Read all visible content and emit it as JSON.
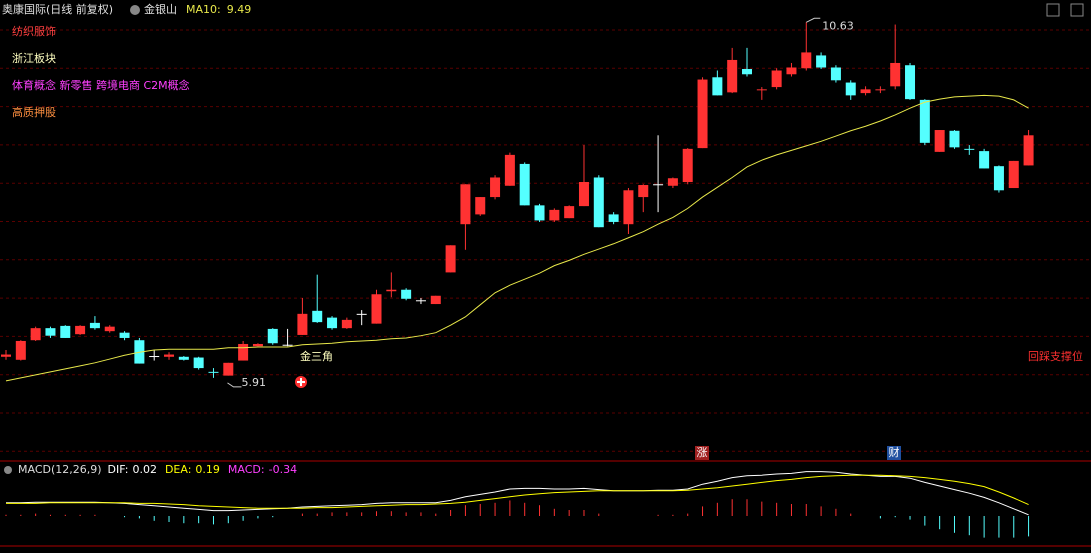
{
  "header": {
    "title": "奥康国际(日线 前复权)",
    "subtitle": "金银山"
  },
  "chart_data": [
    {
      "type": "candlestick",
      "ylim": [
        4.82,
        10.74
      ],
      "up_color": "#ff3232",
      "down_color": "#54ffff",
      "flat_color": "#ffffff",
      "candles": [
        {
          "open": 6.19,
          "high": 6.28,
          "low": 6.15,
          "close": 6.22
        },
        {
          "open": 6.15,
          "high": 6.41,
          "low": 6.14,
          "close": 6.4
        },
        {
          "open": 6.41,
          "high": 6.59,
          "low": 6.4,
          "close": 6.57
        },
        {
          "open": 6.57,
          "high": 6.59,
          "low": 6.44,
          "close": 6.47
        },
        {
          "open": 6.6,
          "high": 6.61,
          "low": 6.44,
          "close": 6.44
        },
        {
          "open": 6.49,
          "high": 6.61,
          "low": 6.48,
          "close": 6.6
        },
        {
          "open": 6.64,
          "high": 6.73,
          "low": 6.55,
          "close": 6.57
        },
        {
          "open": 6.53,
          "high": 6.61,
          "low": 6.51,
          "close": 6.59
        },
        {
          "open": 6.51,
          "high": 6.53,
          "low": 6.41,
          "close": 6.44
        },
        {
          "open": 6.41,
          "high": 6.44,
          "low": 6.1,
          "close": 6.1
        },
        {
          "open": 6.2,
          "high": 6.28,
          "low": 6.14,
          "close": 6.2
        },
        {
          "open": 6.19,
          "high": 6.25,
          "low": 6.15,
          "close": 6.22
        },
        {
          "open": 6.19,
          "high": 6.2,
          "low": 6.14,
          "close": 6.15
        },
        {
          "open": 6.18,
          "high": 6.19,
          "low": 6.02,
          "close": 6.04
        },
        {
          "open": 5.99,
          "high": 6.04,
          "low": 5.91,
          "close": 5.98
        },
        {
          "open": 5.94,
          "high": 6.11,
          "low": 5.94,
          "close": 6.11
        },
        {
          "open": 6.14,
          "high": 6.4,
          "low": 6.14,
          "close": 6.36
        },
        {
          "open": 6.33,
          "high": 6.37,
          "low": 6.33,
          "close": 6.36
        },
        {
          "open": 6.56,
          "high": 6.57,
          "low": 6.35,
          "close": 6.37
        },
        {
          "open": 6.35,
          "high": 6.56,
          "low": 6.33,
          "close": 6.35
        },
        {
          "open": 6.48,
          "high": 6.97,
          "low": 6.48,
          "close": 6.76
        },
        {
          "open": 6.8,
          "high": 7.28,
          "low": 6.64,
          "close": 6.65
        },
        {
          "open": 6.71,
          "high": 6.73,
          "low": 6.55,
          "close": 6.57
        },
        {
          "open": 6.57,
          "high": 6.71,
          "low": 6.56,
          "close": 6.68
        },
        {
          "open": 6.76,
          "high": 6.81,
          "low": 6.61,
          "close": 6.76
        },
        {
          "open": 6.63,
          "high": 7.08,
          "low": 6.63,
          "close": 7.02
        },
        {
          "open": 7.06,
          "high": 7.31,
          "low": 6.98,
          "close": 7.08
        },
        {
          "open": 7.08,
          "high": 7.1,
          "low": 6.94,
          "close": 6.96
        },
        {
          "open": 6.94,
          "high": 6.97,
          "low": 6.89,
          "close": 6.94
        },
        {
          "open": 6.89,
          "high": 7.0,
          "low": 6.89,
          "close": 7.0
        },
        {
          "open": 7.31,
          "high": 7.67,
          "low": 7.31,
          "close": 7.67
        },
        {
          "open": 7.95,
          "high": 8.48,
          "low": 7.61,
          "close": 8.48
        },
        {
          "open": 8.08,
          "high": 8.31,
          "low": 8.06,
          "close": 8.31
        },
        {
          "open": 8.31,
          "high": 8.6,
          "low": 8.28,
          "close": 8.57
        },
        {
          "open": 8.46,
          "high": 8.9,
          "low": 8.46,
          "close": 8.87
        },
        {
          "open": 8.75,
          "high": 8.77,
          "low": 8.2,
          "close": 8.2
        },
        {
          "open": 8.2,
          "high": 8.22,
          "low": 7.98,
          "close": 8.0
        },
        {
          "open": 8.0,
          "high": 8.16,
          "low": 7.98,
          "close": 8.14
        },
        {
          "open": 8.03,
          "high": 8.2,
          "low": 8.03,
          "close": 8.19
        },
        {
          "open": 8.19,
          "high": 9.0,
          "low": 8.19,
          "close": 8.51
        },
        {
          "open": 8.57,
          "high": 8.6,
          "low": 7.91,
          "close": 7.91
        },
        {
          "open": 8.08,
          "high": 8.11,
          "low": 7.95,
          "close": 7.98
        },
        {
          "open": 7.95,
          "high": 8.43,
          "low": 7.82,
          "close": 8.4
        },
        {
          "open": 8.31,
          "high": 8.48,
          "low": 8.11,
          "close": 8.47
        },
        {
          "open": 8.48,
          "high": 9.13,
          "low": 8.11,
          "close": 8.48
        },
        {
          "open": 8.46,
          "high": 8.57,
          "low": 8.43,
          "close": 8.56
        },
        {
          "open": 8.51,
          "high": 8.96,
          "low": 8.48,
          "close": 8.95
        },
        {
          "open": 8.96,
          "high": 9.9,
          "low": 8.96,
          "close": 9.87
        },
        {
          "open": 9.9,
          "high": 9.99,
          "low": 9.66,
          "close": 9.66
        },
        {
          "open": 9.7,
          "high": 10.29,
          "low": 9.69,
          "close": 10.13
        },
        {
          "open": 10.01,
          "high": 10.29,
          "low": 9.91,
          "close": 9.94
        },
        {
          "open": 9.73,
          "high": 9.77,
          "low": 9.6,
          "close": 9.74
        },
        {
          "open": 9.77,
          "high": 10.02,
          "low": 9.74,
          "close": 9.99
        },
        {
          "open": 9.94,
          "high": 10.09,
          "low": 9.91,
          "close": 10.03
        },
        {
          "open": 10.02,
          "high": 10.63,
          "low": 9.99,
          "close": 10.23
        },
        {
          "open": 10.19,
          "high": 10.23,
          "low": 10.01,
          "close": 10.03
        },
        {
          "open": 10.03,
          "high": 10.06,
          "low": 9.83,
          "close": 9.86
        },
        {
          "open": 9.83,
          "high": 9.86,
          "low": 9.6,
          "close": 9.66
        },
        {
          "open": 9.69,
          "high": 9.78,
          "low": 9.66,
          "close": 9.74
        },
        {
          "open": 9.73,
          "high": 9.78,
          "low": 9.69,
          "close": 9.74
        },
        {
          "open": 9.78,
          "high": 10.6,
          "low": 9.74,
          "close": 10.09
        },
        {
          "open": 10.06,
          "high": 10.09,
          "low": 9.6,
          "close": 9.61
        },
        {
          "open": 9.6,
          "high": 9.61,
          "low": 9.0,
          "close": 9.03
        },
        {
          "open": 8.91,
          "high": 9.2,
          "low": 8.91,
          "close": 9.2
        },
        {
          "open": 9.19,
          "high": 9.2,
          "low": 8.95,
          "close": 8.97
        },
        {
          "open": 8.95,
          "high": 9.0,
          "low": 8.87,
          "close": 8.94
        },
        {
          "open": 8.92,
          "high": 8.95,
          "low": 8.69,
          "close": 8.69
        },
        {
          "open": 8.72,
          "high": 8.73,
          "low": 8.37,
          "close": 8.4
        },
        {
          "open": 8.43,
          "high": 8.79,
          "low": 8.43,
          "close": 8.79
        },
        {
          "open": 8.73,
          "high": 9.2,
          "low": 8.73,
          "close": 9.13
        }
      ],
      "series": [
        {
          "name": "MA10:",
          "color": "#e8e84a",
          "values": [
            5.87,
            5.91,
            5.95,
            5.99,
            6.03,
            6.07,
            6.11,
            6.16,
            6.21,
            6.25,
            6.28,
            6.29,
            6.29,
            6.29,
            6.29,
            6.31,
            6.31,
            6.32,
            6.32,
            6.32,
            6.35,
            6.36,
            6.37,
            6.39,
            6.4,
            6.41,
            6.43,
            6.44,
            6.47,
            6.51,
            6.61,
            6.72,
            6.88,
            7.04,
            7.14,
            7.22,
            7.3,
            7.4,
            7.47,
            7.55,
            7.62,
            7.69,
            7.77,
            7.85,
            7.95,
            8.04,
            8.16,
            8.31,
            8.44,
            8.57,
            8.71,
            8.8,
            8.87,
            8.93,
            8.99,
            9.05,
            9.12,
            9.19,
            9.25,
            9.32,
            9.4,
            9.49,
            9.57,
            9.61,
            9.64,
            9.65,
            9.66,
            9.65,
            9.6,
            9.49
          ]
        }
      ],
      "max_label": 10.63,
      "min_label": 5.91,
      "tags": [
        {
          "text": "纺织服饰",
          "color": "#ff4040"
        },
        {
          "text": "浙江板块",
          "color": "#ffffc0"
        },
        {
          "text": "体育概念 新零售 跨境电商 C2M概念",
          "color": "#ff40ff"
        },
        {
          "text": "高质押股",
          "color": "#ff9040"
        }
      ],
      "annotations": [
        "金三角",
        "回踩支撑位"
      ],
      "markers": [
        "涨",
        "财"
      ]
    },
    {
      "type": "macd",
      "title": "MACD(12,26,9)",
      "ylim": [
        -0.5,
        0.9
      ],
      "up_color": "#ff3232",
      "down_color": "#54ffff",
      "series": [
        {
          "name": "DIF:",
          "color": "#ffffff",
          "values": [
            0.22,
            0.22,
            0.23,
            0.23,
            0.23,
            0.23,
            0.23,
            0.22,
            0.21,
            0.19,
            0.17,
            0.15,
            0.13,
            0.11,
            0.09,
            0.09,
            0.1,
            0.11,
            0.12,
            0.13,
            0.15,
            0.16,
            0.17,
            0.18,
            0.19,
            0.21,
            0.22,
            0.22,
            0.22,
            0.22,
            0.26,
            0.32,
            0.36,
            0.4,
            0.45,
            0.46,
            0.46,
            0.45,
            0.45,
            0.46,
            0.44,
            0.42,
            0.42,
            0.42,
            0.43,
            0.43,
            0.45,
            0.53,
            0.58,
            0.64,
            0.67,
            0.68,
            0.7,
            0.71,
            0.74,
            0.74,
            0.73,
            0.7,
            0.68,
            0.66,
            0.66,
            0.63,
            0.56,
            0.5,
            0.44,
            0.38,
            0.31,
            0.22,
            0.12,
            0.02
          ]
        },
        {
          "name": "DEA:",
          "color": "#ffff00",
          "values": [
            0.21,
            0.21,
            0.21,
            0.22,
            0.22,
            0.22,
            0.22,
            0.22,
            0.22,
            0.21,
            0.21,
            0.2,
            0.19,
            0.17,
            0.16,
            0.15,
            0.14,
            0.13,
            0.13,
            0.13,
            0.13,
            0.14,
            0.14,
            0.15,
            0.16,
            0.17,
            0.18,
            0.19,
            0.19,
            0.2,
            0.21,
            0.23,
            0.26,
            0.29,
            0.32,
            0.35,
            0.37,
            0.39,
            0.4,
            0.41,
            0.42,
            0.42,
            0.42,
            0.42,
            0.42,
            0.42,
            0.43,
            0.45,
            0.47,
            0.5,
            0.53,
            0.56,
            0.59,
            0.61,
            0.64,
            0.66,
            0.67,
            0.68,
            0.68,
            0.68,
            0.67,
            0.66,
            0.64,
            0.61,
            0.58,
            0.54,
            0.49,
            0.4,
            0.3,
            0.19
          ]
        },
        {
          "name": "MACD:",
          "color": "#ff40ff",
          "values": [
            0.02,
            0.02,
            0.04,
            0.02,
            0.02,
            0.02,
            0.02,
            0,
            -0.02,
            -0.04,
            -0.08,
            -0.1,
            -0.12,
            -0.12,
            -0.14,
            -0.12,
            -0.08,
            -0.04,
            -0.02,
            0,
            0.04,
            0.04,
            0.06,
            0.06,
            0.06,
            0.08,
            0.08,
            0.06,
            0.06,
            0.04,
            0.1,
            0.18,
            0.2,
            0.22,
            0.26,
            0.22,
            0.18,
            0.12,
            0.1,
            0.1,
            0.04,
            0,
            0,
            0,
            0.02,
            0.02,
            0.04,
            0.16,
            0.22,
            0.28,
            0.28,
            0.24,
            0.22,
            0.2,
            0.2,
            0.16,
            0.12,
            0.04,
            0,
            -0.04,
            -0.02,
            -0.06,
            -0.16,
            -0.22,
            -0.28,
            -0.32,
            -0.36,
            -0.36,
            -0.36,
            -0.34
          ]
        }
      ]
    }
  ]
}
